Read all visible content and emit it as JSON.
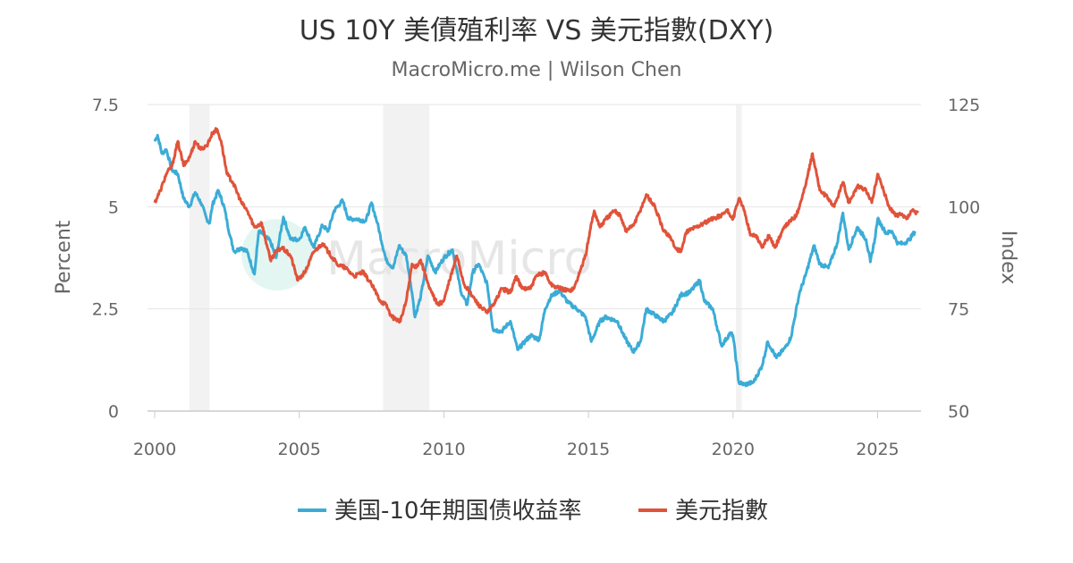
{
  "chart_data": {
    "type": "line",
    "title": "US 10Y 美債殖利率 VS 美元指數(DXY)",
    "subtitle": "MacroMicro.me | Wilson Chen",
    "watermark": "MacroMicro",
    "x_ticks": [
      "2000",
      "2005",
      "2010",
      "2015",
      "2020",
      "2025"
    ],
    "xlim": [
      2000,
      2026.5
    ],
    "left_axis": {
      "label": "Percent",
      "ticks": [
        "0",
        "2.5",
        "5",
        "7.5"
      ],
      "ylim": [
        0,
        7.5
      ]
    },
    "right_axis": {
      "label": "Index",
      "ticks": [
        "50",
        "75",
        "100",
        "125"
      ],
      "ylim": [
        50,
        125
      ]
    },
    "recessions": [
      [
        2001.2,
        2001.9
      ],
      [
        2007.9,
        2009.5
      ],
      [
        2020.1,
        2020.3
      ]
    ],
    "legend": {
      "position": "bottom-center"
    },
    "series": [
      {
        "name": "美国-10年期国债收益率",
        "axis": "left",
        "color": "#3bacd6",
        "points": [
          [
            2000.0,
            6.6
          ],
          [
            2000.1,
            6.75
          ],
          [
            2000.25,
            6.3
          ],
          [
            2000.4,
            6.4
          ],
          [
            2000.6,
            5.9
          ],
          [
            2000.8,
            5.8
          ],
          [
            2001.0,
            5.2
          ],
          [
            2001.2,
            5.0
          ],
          [
            2001.4,
            5.35
          ],
          [
            2001.6,
            5.1
          ],
          [
            2001.8,
            4.7
          ],
          [
            2001.9,
            4.6
          ],
          [
            2002.0,
            5.05
          ],
          [
            2002.2,
            5.4
          ],
          [
            2002.4,
            5.0
          ],
          [
            2002.6,
            4.3
          ],
          [
            2002.75,
            3.9
          ],
          [
            2003.0,
            4.0
          ],
          [
            2003.2,
            3.9
          ],
          [
            2003.45,
            3.35
          ],
          [
            2003.6,
            4.4
          ],
          [
            2003.8,
            4.3
          ],
          [
            2004.0,
            4.15
          ],
          [
            2004.2,
            3.75
          ],
          [
            2004.45,
            4.75
          ],
          [
            2004.7,
            4.2
          ],
          [
            2005.0,
            4.2
          ],
          [
            2005.2,
            4.5
          ],
          [
            2005.5,
            4.0
          ],
          [
            2005.8,
            4.55
          ],
          [
            2006.0,
            4.4
          ],
          [
            2006.2,
            4.9
          ],
          [
            2006.5,
            5.15
          ],
          [
            2006.7,
            4.7
          ],
          [
            2007.0,
            4.7
          ],
          [
            2007.3,
            4.65
          ],
          [
            2007.5,
            5.1
          ],
          [
            2007.7,
            4.6
          ],
          [
            2008.0,
            3.7
          ],
          [
            2008.25,
            3.5
          ],
          [
            2008.45,
            4.05
          ],
          [
            2008.7,
            3.8
          ],
          [
            2008.9,
            2.9
          ],
          [
            2009.0,
            2.3
          ],
          [
            2009.2,
            2.8
          ],
          [
            2009.45,
            3.8
          ],
          [
            2009.7,
            3.4
          ],
          [
            2010.0,
            3.75
          ],
          [
            2010.3,
            3.95
          ],
          [
            2010.6,
            2.9
          ],
          [
            2010.8,
            2.6
          ],
          [
            2011.0,
            3.4
          ],
          [
            2011.2,
            3.6
          ],
          [
            2011.5,
            3.1
          ],
          [
            2011.7,
            2.0
          ],
          [
            2012.0,
            1.95
          ],
          [
            2012.3,
            2.2
          ],
          [
            2012.55,
            1.5
          ],
          [
            2012.8,
            1.7
          ],
          [
            2013.0,
            1.85
          ],
          [
            2013.3,
            1.75
          ],
          [
            2013.5,
            2.5
          ],
          [
            2013.7,
            2.8
          ],
          [
            2014.0,
            2.95
          ],
          [
            2014.3,
            2.65
          ],
          [
            2014.6,
            2.5
          ],
          [
            2014.9,
            2.3
          ],
          [
            2015.1,
            1.7
          ],
          [
            2015.4,
            2.2
          ],
          [
            2015.6,
            2.3
          ],
          [
            2016.0,
            2.2
          ],
          [
            2016.25,
            1.8
          ],
          [
            2016.55,
            1.45
          ],
          [
            2016.8,
            1.7
          ],
          [
            2017.0,
            2.5
          ],
          [
            2017.3,
            2.35
          ],
          [
            2017.6,
            2.2
          ],
          [
            2017.9,
            2.4
          ],
          [
            2018.2,
            2.85
          ],
          [
            2018.5,
            2.9
          ],
          [
            2018.85,
            3.2
          ],
          [
            2019.0,
            2.7
          ],
          [
            2019.3,
            2.5
          ],
          [
            2019.6,
            1.6
          ],
          [
            2019.9,
            1.9
          ],
          [
            2020.0,
            1.85
          ],
          [
            2020.2,
            0.7
          ],
          [
            2020.4,
            0.65
          ],
          [
            2020.7,
            0.7
          ],
          [
            2021.0,
            1.1
          ],
          [
            2021.2,
            1.7
          ],
          [
            2021.5,
            1.3
          ],
          [
            2021.8,
            1.55
          ],
          [
            2022.0,
            1.8
          ],
          [
            2022.3,
            2.9
          ],
          [
            2022.5,
            3.3
          ],
          [
            2022.8,
            4.05
          ],
          [
            2023.0,
            3.6
          ],
          [
            2023.3,
            3.5
          ],
          [
            2023.6,
            4.1
          ],
          [
            2023.8,
            4.85
          ],
          [
            2024.0,
            3.95
          ],
          [
            2024.3,
            4.5
          ],
          [
            2024.6,
            4.2
          ],
          [
            2024.75,
            3.65
          ],
          [
            2024.9,
            4.2
          ],
          [
            2025.0,
            4.7
          ],
          [
            2025.3,
            4.35
          ],
          [
            2025.5,
            4.4
          ],
          [
            2025.7,
            4.1
          ],
          [
            2025.9,
            4.1
          ],
          [
            2026.1,
            4.2
          ],
          [
            2026.3,
            4.4
          ]
        ]
      },
      {
        "name": "美元指數",
        "axis": "right",
        "color": "#e0533a",
        "points": [
          [
            2000.0,
            101
          ],
          [
            2000.2,
            104
          ],
          [
            2000.4,
            108
          ],
          [
            2000.6,
            110
          ],
          [
            2000.8,
            116
          ],
          [
            2001.0,
            110
          ],
          [
            2001.2,
            112
          ],
          [
            2001.4,
            116
          ],
          [
            2001.6,
            114
          ],
          [
            2001.8,
            115
          ],
          [
            2002.0,
            118
          ],
          [
            2002.15,
            119
          ],
          [
            2002.3,
            116
          ],
          [
            2002.5,
            108
          ],
          [
            2002.7,
            106
          ],
          [
            2003.0,
            101
          ],
          [
            2003.2,
            99
          ],
          [
            2003.45,
            95
          ],
          [
            2003.7,
            96
          ],
          [
            2003.9,
            90
          ],
          [
            2004.0,
            87
          ],
          [
            2004.2,
            89
          ],
          [
            2004.4,
            90
          ],
          [
            2004.7,
            88
          ],
          [
            2004.95,
            82
          ],
          [
            2005.2,
            84
          ],
          [
            2005.5,
            89
          ],
          [
            2005.8,
            91
          ],
          [
            2006.0,
            89
          ],
          [
            2006.3,
            86
          ],
          [
            2006.6,
            85
          ],
          [
            2006.9,
            83
          ],
          [
            2007.2,
            84
          ],
          [
            2007.5,
            81
          ],
          [
            2007.8,
            77
          ],
          [
            2008.0,
            76
          ],
          [
            2008.2,
            73
          ],
          [
            2008.5,
            72
          ],
          [
            2008.7,
            77
          ],
          [
            2008.9,
            86
          ],
          [
            2009.0,
            85
          ],
          [
            2009.2,
            87
          ],
          [
            2009.5,
            80
          ],
          [
            2009.8,
            76
          ],
          [
            2010.0,
            77
          ],
          [
            2010.2,
            82
          ],
          [
            2010.45,
            88
          ],
          [
            2010.7,
            81
          ],
          [
            2010.9,
            79
          ],
          [
            2011.2,
            76
          ],
          [
            2011.5,
            74
          ],
          [
            2011.8,
            77
          ],
          [
            2012.0,
            80
          ],
          [
            2012.3,
            79
          ],
          [
            2012.5,
            83
          ],
          [
            2012.7,
            80
          ],
          [
            2013.0,
            80
          ],
          [
            2013.2,
            83
          ],
          [
            2013.5,
            84
          ],
          [
            2013.7,
            81
          ],
          [
            2014.0,
            80
          ],
          [
            2014.3,
            79.5
          ],
          [
            2014.5,
            80
          ],
          [
            2014.7,
            84
          ],
          [
            2014.9,
            88
          ],
          [
            2015.05,
            94
          ],
          [
            2015.2,
            99
          ],
          [
            2015.4,
            95
          ],
          [
            2015.6,
            97
          ],
          [
            2015.9,
            99
          ],
          [
            2016.1,
            98
          ],
          [
            2016.3,
            94
          ],
          [
            2016.6,
            96
          ],
          [
            2016.9,
            101
          ],
          [
            2017.0,
            103
          ],
          [
            2017.3,
            100
          ],
          [
            2017.6,
            94
          ],
          [
            2017.8,
            93
          ],
          [
            2018.0,
            90
          ],
          [
            2018.2,
            89
          ],
          [
            2018.4,
            94
          ],
          [
            2018.7,
            95
          ],
          [
            2019.0,
            96
          ],
          [
            2019.3,
            97
          ],
          [
            2019.6,
            98
          ],
          [
            2019.8,
            99
          ],
          [
            2020.0,
            97
          ],
          [
            2020.2,
            102
          ],
          [
            2020.4,
            99
          ],
          [
            2020.6,
            93
          ],
          [
            2020.8,
            93
          ],
          [
            2021.0,
            90
          ],
          [
            2021.25,
            93
          ],
          [
            2021.45,
            90
          ],
          [
            2021.7,
            94
          ],
          [
            2021.9,
            96
          ],
          [
            2022.2,
            98
          ],
          [
            2022.5,
            105
          ],
          [
            2022.75,
            113
          ],
          [
            2023.0,
            104
          ],
          [
            2023.3,
            102
          ],
          [
            2023.5,
            100
          ],
          [
            2023.8,
            106
          ],
          [
            2024.0,
            101
          ],
          [
            2024.3,
            105
          ],
          [
            2024.6,
            104
          ],
          [
            2024.8,
            101
          ],
          [
            2025.0,
            108
          ],
          [
            2025.2,
            104
          ],
          [
            2025.4,
            100
          ],
          [
            2025.6,
            98
          ],
          [
            2025.8,
            98
          ],
          [
            2026.0,
            97
          ],
          [
            2026.2,
            99
          ],
          [
            2026.4,
            98.5
          ]
        ]
      }
    ]
  }
}
